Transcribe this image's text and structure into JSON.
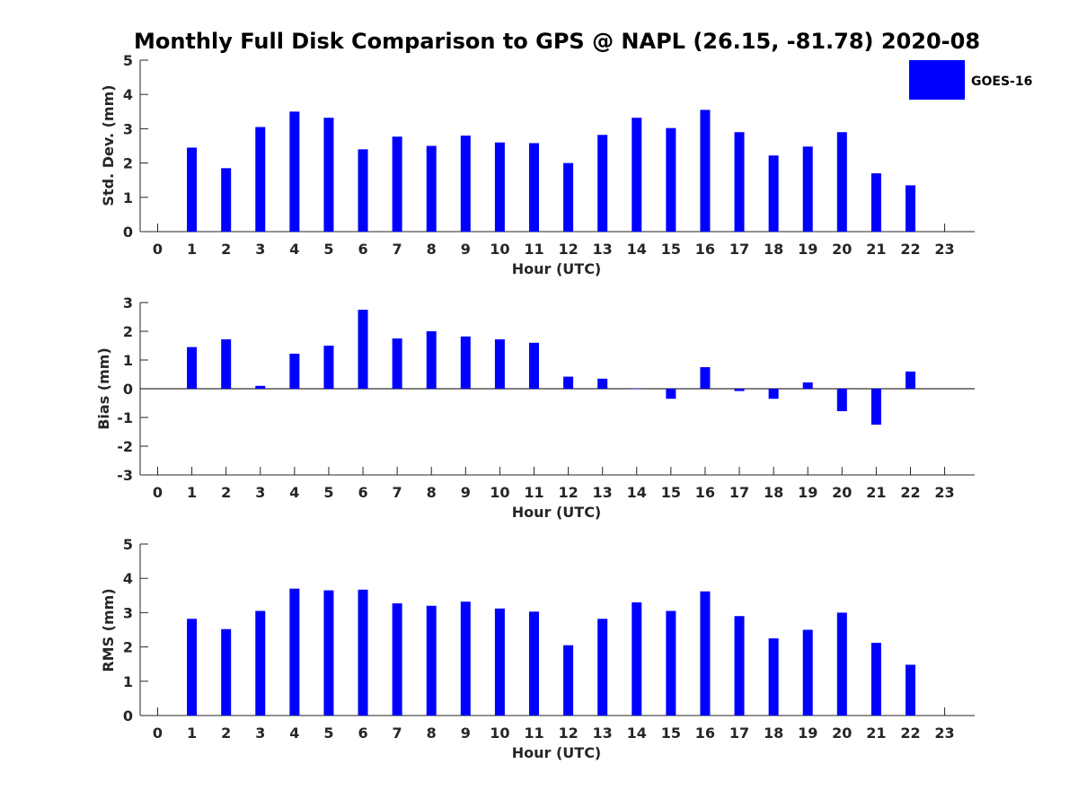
{
  "title": "Monthly Full Disk Comparison to GPS @ NAPL (26.15, -81.78) 2020-08",
  "legend": {
    "label": "GOES-16",
    "color": "#0000ff"
  },
  "chart_data": [
    {
      "type": "bar",
      "xlabel": "Hour (UTC)",
      "ylabel": "Std. Dev. (mm)",
      "ylim": [
        0,
        5
      ],
      "yticks": [
        0,
        1,
        2,
        3,
        4,
        5
      ],
      "categories": [
        "0",
        "1",
        "2",
        "3",
        "4",
        "5",
        "6",
        "7",
        "8",
        "9",
        "10",
        "11",
        "12",
        "13",
        "14",
        "15",
        "16",
        "17",
        "18",
        "19",
        "20",
        "21",
        "22",
        "23"
      ],
      "series": [
        {
          "name": "GOES-16",
          "values": [
            null,
            2.45,
            1.85,
            3.05,
            3.5,
            3.32,
            2.4,
            2.77,
            2.5,
            2.8,
            2.6,
            2.58,
            2.0,
            2.82,
            3.32,
            3.02,
            3.55,
            2.9,
            2.22,
            2.48,
            2.9,
            1.7,
            1.35,
            null
          ]
        }
      ]
    },
    {
      "type": "bar",
      "xlabel": "Hour (UTC)",
      "ylabel": "Bias (mm)",
      "ylim": [
        -3,
        3
      ],
      "yticks": [
        -3,
        -2,
        -1,
        0,
        1,
        2,
        3
      ],
      "categories": [
        "0",
        "1",
        "2",
        "3",
        "4",
        "5",
        "6",
        "7",
        "8",
        "9",
        "10",
        "11",
        "12",
        "13",
        "14",
        "15",
        "16",
        "17",
        "18",
        "19",
        "20",
        "21",
        "22",
        "23"
      ],
      "series": [
        {
          "name": "GOES-16",
          "values": [
            null,
            1.45,
            1.72,
            0.1,
            1.22,
            1.5,
            2.75,
            1.75,
            2.0,
            1.82,
            1.72,
            1.6,
            0.42,
            0.35,
            0.0,
            -0.35,
            0.75,
            -0.08,
            -0.35,
            0.22,
            -0.78,
            -1.25,
            0.6,
            null
          ]
        }
      ]
    },
    {
      "type": "bar",
      "xlabel": "Hour (UTC)",
      "ylabel": "RMS (mm)",
      "ylim": [
        0,
        5
      ],
      "yticks": [
        0,
        1,
        2,
        3,
        4,
        5
      ],
      "categories": [
        "0",
        "1",
        "2",
        "3",
        "4",
        "5",
        "6",
        "7",
        "8",
        "9",
        "10",
        "11",
        "12",
        "13",
        "14",
        "15",
        "16",
        "17",
        "18",
        "19",
        "20",
        "21",
        "22",
        "23"
      ],
      "series": [
        {
          "name": "GOES-16",
          "values": [
            null,
            2.82,
            2.52,
            3.05,
            3.7,
            3.65,
            3.67,
            3.27,
            3.2,
            3.32,
            3.12,
            3.03,
            2.05,
            2.82,
            3.3,
            3.05,
            3.62,
            2.9,
            2.25,
            2.5,
            3.0,
            2.12,
            1.48,
            null
          ]
        }
      ]
    }
  ]
}
